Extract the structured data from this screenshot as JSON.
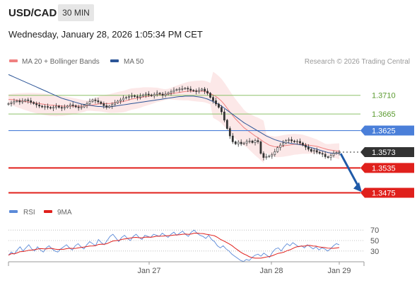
{
  "header": {
    "pair": "USD/CAD",
    "timeframe": "30 MIN",
    "datetime": "Wednesday, January 28, 2026 1:05:34 PM CET"
  },
  "colors": {
    "bollinger": "#f08080",
    "ma50": "#2c5597",
    "rsi": "#5b8ad8",
    "ma9": "#e0201c",
    "resistance": "#8dc26a",
    "support": "#e0201c",
    "pivot": "#4a7fd9",
    "current": "#333333"
  },
  "chart_data": [
    {
      "type": "candlestick",
      "title": "",
      "legend": [
        {
          "name": "MA 20 + Bollinger Bands",
          "color": "#f08080"
        },
        {
          "name": "MA 50",
          "color": "#2c5597"
        }
      ],
      "legend_placement": "top-left",
      "credit": "Research © 2026 Trading Central",
      "ylim": [
        1.3452,
        1.3776
      ],
      "x_ticks": [
        "Jan 27",
        "Jan 28",
        "Jan 29"
      ],
      "levels": [
        {
          "label": "1.3710",
          "value": 1.371,
          "kind": "resistance"
        },
        {
          "label": "1.3665",
          "value": 1.3665,
          "kind": "resistance"
        },
        {
          "label": "1.3625",
          "value": 1.3625,
          "kind": "pivot"
        },
        {
          "label": "1.3573",
          "value": 1.3573,
          "kind": "current"
        },
        {
          "label": "1.3535",
          "value": 1.3535,
          "kind": "support"
        },
        {
          "label": "1.3475",
          "value": 1.3475,
          "kind": "support"
        }
      ],
      "close": [
        1.369,
        1.3692,
        1.3695,
        1.3697,
        1.3694,
        1.3696,
        1.3699,
        1.3697,
        1.3693,
        1.369,
        1.3687,
        1.3684,
        1.3682,
        1.3683,
        1.3681,
        1.3679,
        1.3681,
        1.3684,
        1.3681,
        1.3679,
        1.3681,
        1.3684,
        1.3687,
        1.3685,
        1.3682,
        1.368,
        1.3682,
        1.3686,
        1.369,
        1.3695,
        1.3699,
        1.3697,
        1.3694,
        1.369,
        1.3685,
        1.3681,
        1.3684,
        1.3688,
        1.3692,
        1.3696,
        1.3699,
        1.3703,
        1.3705,
        1.3707,
        1.3709,
        1.3707,
        1.3705,
        1.3708,
        1.3711,
        1.3713,
        1.3711,
        1.3709,
        1.3712,
        1.3715,
        1.3713,
        1.371,
        1.3713,
        1.3716,
        1.3719,
        1.3722,
        1.3724,
        1.3725,
        1.3726,
        1.3727,
        1.3725,
        1.3722,
        1.3721,
        1.3719,
        1.3722,
        1.3725,
        1.372,
        1.3715,
        1.3705,
        1.3697,
        1.3689,
        1.3681,
        1.367,
        1.365,
        1.363,
        1.3612,
        1.3598,
        1.3593,
        1.3597,
        1.3593,
        1.3595,
        1.3599,
        1.36,
        1.3596,
        1.3601,
        1.3598,
        1.357,
        1.356,
        1.3562,
        1.3564,
        1.3567,
        1.3574,
        1.3584,
        1.359,
        1.3595,
        1.3601,
        1.3603,
        1.36,
        1.3598,
        1.3599,
        1.3595,
        1.359,
        1.3585,
        1.358,
        1.3575,
        1.3577,
        1.3573,
        1.357,
        1.3568,
        1.3562,
        1.356,
        1.3565,
        1.357,
        1.3572,
        1.3573
      ],
      "ma20": [
        1.37,
        1.37,
        1.3699,
        1.3698,
        1.3697,
        1.3696,
        1.3695,
        1.3694,
        1.3693,
        1.3692,
        1.3691,
        1.369,
        1.3689,
        1.3688,
        1.3687,
        1.3686,
        1.3686,
        1.3685,
        1.3685,
        1.3684,
        1.3684,
        1.3684,
        1.3684,
        1.3684,
        1.3684,
        1.3684,
        1.3684,
        1.3684,
        1.3685,
        1.3686,
        1.3687,
        1.3688,
        1.3689,
        1.369,
        1.369,
        1.369,
        1.369,
        1.3691,
        1.3692,
        1.3693,
        1.3694,
        1.3695,
        1.3697,
        1.3699,
        1.3701,
        1.3702,
        1.3703,
        1.3704,
        1.3706,
        1.3707,
        1.3708,
        1.3709,
        1.371,
        1.3711,
        1.3711,
        1.3711,
        1.3712,
        1.3713,
        1.3714,
        1.3715,
        1.3716,
        1.3717,
        1.3718,
        1.3719,
        1.372,
        1.372,
        1.372,
        1.372,
        1.372,
        1.372,
        1.3719,
        1.3717,
        1.3714,
        1.3711,
        1.3707,
        1.3702,
        1.3696,
        1.3688,
        1.3679,
        1.367,
        1.3661,
        1.3653,
        1.3646,
        1.3639,
        1.3632,
        1.3627,
        1.3622,
        1.3617,
        1.3612,
        1.3608,
        1.3603,
        1.3598,
        1.3594,
        1.359,
        1.3588,
        1.3586,
        1.3586,
        1.3587,
        1.3588,
        1.3589,
        1.359,
        1.3591,
        1.3592,
        1.3592,
        1.3592,
        1.3592,
        1.3591,
        1.359,
        1.3589,
        1.3588,
        1.3587,
        1.3585,
        1.3583,
        1.3581,
        1.3579,
        1.3578,
        1.3577,
        1.3576,
        1.3575
      ],
      "ma50": [
        1.376,
        1.3757,
        1.3754,
        1.3751,
        1.3748,
        1.3745,
        1.3742,
        1.3739,
        1.3736,
        1.3733,
        1.373,
        1.3727,
        1.3724,
        1.3721,
        1.3718,
        1.3715,
        1.3712,
        1.3709,
        1.3706,
        1.3703,
        1.3701,
        1.3699,
        1.3697,
        1.3695,
        1.3693,
        1.3691,
        1.3689,
        1.3688,
        1.3687,
        1.3686,
        1.3685,
        1.3684,
        1.3683,
        1.3683,
        1.3682,
        1.3682,
        1.3682,
        1.3683,
        1.3684,
        1.3685,
        1.3686,
        1.3687,
        1.3688,
        1.3689,
        1.369,
        1.3691,
        1.3692,
        1.3693,
        1.3694,
        1.3695,
        1.3696,
        1.3697,
        1.3698,
        1.3699,
        1.37,
        1.3701,
        1.3702,
        1.3703,
        1.3704,
        1.3705,
        1.3706,
        1.3707,
        1.3707,
        1.3708,
        1.3708,
        1.3708,
        1.3708,
        1.3707,
        1.3706,
        1.3705,
        1.3703,
        1.3701,
        1.3698,
        1.3695,
        1.3692,
        1.3688,
        1.3684,
        1.3679,
        1.3674,
        1.3669,
        1.3664,
        1.3659,
        1.3654,
        1.3649,
        1.3644,
        1.364,
        1.3636,
        1.3632,
        1.3628,
        1.3624,
        1.362,
        1.3616,
        1.3612,
        1.3609,
        1.3606,
        1.3603,
        1.3601,
        1.3599,
        1.3597,
        1.3596,
        1.3595,
        1.3594,
        1.3593,
        1.3592,
        1.3591,
        1.359,
        1.3588,
        1.3586,
        1.3584,
        1.3582,
        1.358,
        1.3578,
        1.3576,
        1.3574,
        1.3572,
        1.3571,
        1.357,
        1.357,
        1.357
      ],
      "forecast": {
        "from": 1.3573,
        "to": 1.3475
      }
    },
    {
      "type": "line",
      "title": "",
      "legend": [
        {
          "name": "RSI",
          "color": "#5b8ad8"
        },
        {
          "name": "9MA",
          "color": "#e0201c"
        }
      ],
      "legend_placement": "top-left",
      "ylim": [
        0,
        100
      ],
      "y_ticks": [
        "70",
        "50",
        "30"
      ],
      "rsi": [
        22,
        28,
        24,
        32,
        38,
        30,
        36,
        42,
        34,
        30,
        38,
        32,
        28,
        36,
        40,
        34,
        30,
        28,
        34,
        38,
        42,
        36,
        32,
        40,
        44,
        38,
        34,
        42,
        48,
        44,
        40,
        52,
        46,
        42,
        50,
        58,
        62,
        55,
        48,
        56,
        60,
        54,
        50,
        58,
        62,
        56,
        52,
        60,
        58,
        56,
        62,
        60,
        58,
        64,
        60,
        56,
        62,
        66,
        60,
        64,
        68,
        62,
        58,
        66,
        70,
        64,
        60,
        58,
        54,
        60,
        52,
        48,
        40,
        36,
        40,
        34,
        30,
        24,
        20,
        16,
        12,
        10,
        14,
        12,
        18,
        22,
        24,
        20,
        26,
        22,
        18,
        28,
        34,
        36,
        30,
        38,
        44,
        40,
        46,
        42,
        38,
        40,
        36,
        42,
        38,
        34,
        38,
        32,
        36,
        34,
        30,
        34,
        40,
        44,
        42
      ]
    }
  ]
}
